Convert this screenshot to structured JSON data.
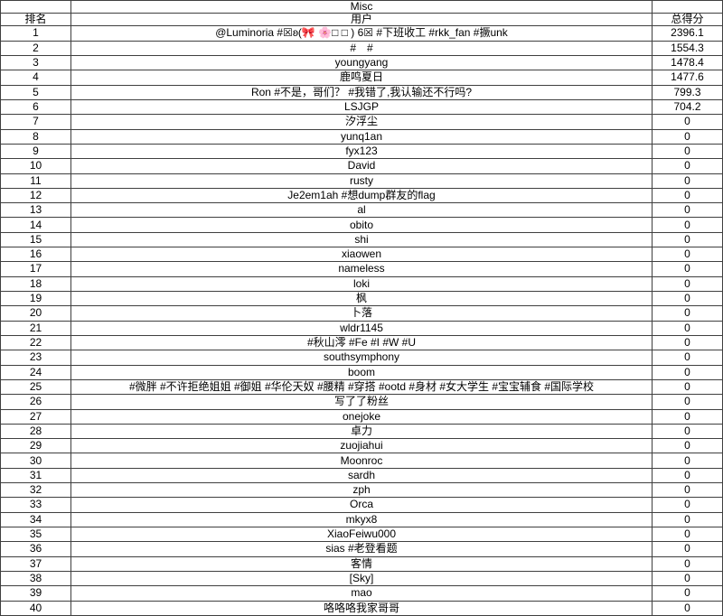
{
  "table": {
    "group_header": "Misc",
    "columns": {
      "rank": "排名",
      "user": "用户",
      "score": "总得分"
    },
    "rows": [
      {
        "rank": "1",
        "user": "@Luminoria #☒ʚ(🎀 🌸□ □ )  6☒ #下班收工 #rkk_fan #撅unk",
        "score": "2396.1"
      },
      {
        "rank": "2",
        "user": "#　#",
        "score": "1554.3"
      },
      {
        "rank": "3",
        "user": "youngyang",
        "score": "1478.4"
      },
      {
        "rank": "4",
        "user": "鹿鸣夏日",
        "score": "1477.6"
      },
      {
        "rank": "5",
        "user": "Ron #不是，哥们？ #我错了,我认输还不行吗?",
        "score": "799.3"
      },
      {
        "rank": "6",
        "user": "LSJGP",
        "score": "704.2"
      },
      {
        "rank": "7",
        "user": "汐浮尘",
        "score": "0"
      },
      {
        "rank": "8",
        "user": "yunq1an",
        "score": "0"
      },
      {
        "rank": "9",
        "user": "fyx123",
        "score": "0"
      },
      {
        "rank": "10",
        "user": "David",
        "score": "0"
      },
      {
        "rank": "11",
        "user": "rusty",
        "score": "0"
      },
      {
        "rank": "12",
        "user": "Je2em1ah #想dump群友的flag",
        "score": "0"
      },
      {
        "rank": "13",
        "user": "al",
        "score": "0"
      },
      {
        "rank": "14",
        "user": "obito",
        "score": "0"
      },
      {
        "rank": "15",
        "user": "shi",
        "score": "0"
      },
      {
        "rank": "16",
        "user": "xiaowen",
        "score": "0"
      },
      {
        "rank": "17",
        "user": "nameless",
        "score": "0"
      },
      {
        "rank": "18",
        "user": "loki",
        "score": "0"
      },
      {
        "rank": "19",
        "user": "枫",
        "score": "0"
      },
      {
        "rank": "20",
        "user": "卜落",
        "score": "0"
      },
      {
        "rank": "21",
        "user": "wldr1145",
        "score": "0"
      },
      {
        "rank": "22",
        "user": "#秋山澪 #Fe #I #W #U",
        "score": "0"
      },
      {
        "rank": "23",
        "user": "southsymphony",
        "score": "0"
      },
      {
        "rank": "24",
        "user": "boom",
        "score": "0"
      },
      {
        "rank": "25",
        "user": "#微胖 #不许拒绝姐姐 #御姐 #华伦天奴 #腰精 #穿搭 #ootd #身材 #女大学生 #宝宝辅食 #国际学校",
        "score": "0"
      },
      {
        "rank": "26",
        "user": "写了了粉丝",
        "score": "0"
      },
      {
        "rank": "27",
        "user": "onejoke",
        "score": "0"
      },
      {
        "rank": "28",
        "user": "卓力",
        "score": "0"
      },
      {
        "rank": "29",
        "user": "zuojiahui",
        "score": "0"
      },
      {
        "rank": "30",
        "user": "Moonroc",
        "score": "0"
      },
      {
        "rank": "31",
        "user": "sardh",
        "score": "0"
      },
      {
        "rank": "32",
        "user": "zph",
        "score": "0"
      },
      {
        "rank": "33",
        "user": "Orca",
        "score": "0"
      },
      {
        "rank": "34",
        "user": "mkyx8",
        "score": "0"
      },
      {
        "rank": "35",
        "user": "XiaoFeiwu000",
        "score": "0"
      },
      {
        "rank": "36",
        "user": "sias #老登看题",
        "score": "0"
      },
      {
        "rank": "37",
        "user": "客情",
        "score": "0"
      },
      {
        "rank": "38",
        "user": "[Sky]",
        "score": "0"
      },
      {
        "rank": "39",
        "user": "mao",
        "score": "0"
      },
      {
        "rank": "40",
        "user": "咯咯咯我家哥哥",
        "score": "0"
      }
    ]
  }
}
